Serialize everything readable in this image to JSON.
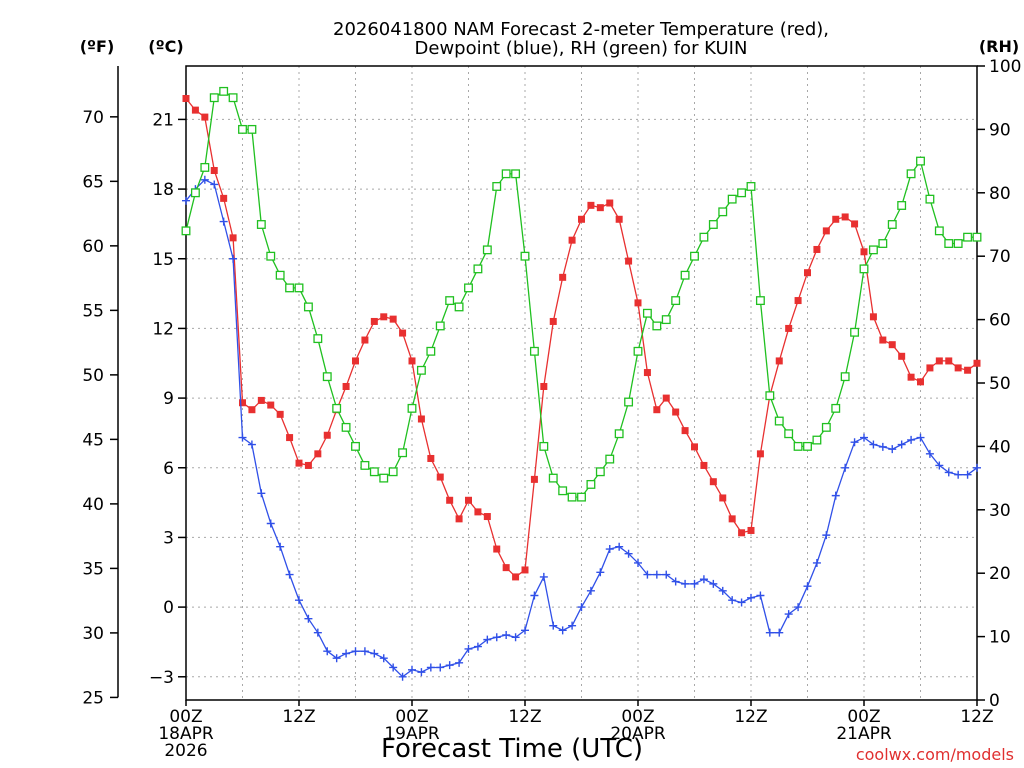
{
  "chart_data": {
    "type": "line",
    "title": [
      "2026041800 NAM Forecast 2-meter Temperature (red),",
      "Dewpoint (blue), RH (green) for KUIN"
    ],
    "xlabel": "Forecast Time (UTC)",
    "credit": "coolwx.com/models",
    "units": {
      "fahrenheit": "(ºF)",
      "celsius": "(ºC)",
      "rh": "(RH)"
    },
    "x_range_hours": [
      0,
      84
    ],
    "x_ticks": [
      {
        "hour": 0,
        "lines": [
          "00Z",
          "18APR",
          "2026"
        ]
      },
      {
        "hour": 12,
        "lines": [
          "12Z"
        ]
      },
      {
        "hour": 24,
        "lines": [
          "00Z",
          "19APR"
        ]
      },
      {
        "hour": 36,
        "lines": [
          "12Z"
        ]
      },
      {
        "hour": 48,
        "lines": [
          "00Z",
          "20APR"
        ]
      },
      {
        "hour": 60,
        "lines": [
          "12Z"
        ]
      },
      {
        "hour": 72,
        "lines": [
          "00Z",
          "21APR"
        ]
      },
      {
        "hour": 84,
        "lines": [
          "12Z"
        ]
      }
    ],
    "y_celsius": {
      "range": [
        -4,
        23.3
      ],
      "ticks": [
        -3,
        0,
        3,
        6,
        9,
        12,
        15,
        18,
        21
      ]
    },
    "y_fahrenheit": {
      "ticks": [
        25,
        30,
        35,
        40,
        45,
        50,
        55,
        60,
        65,
        70
      ]
    },
    "y_rh": {
      "range": [
        0,
        100
      ],
      "ticks": [
        0,
        10,
        20,
        30,
        40,
        50,
        60,
        70,
        80,
        90,
        100
      ]
    },
    "grid": true,
    "series": [
      {
        "name": "Temperature",
        "color": "#e83030",
        "unit": "C",
        "marker": "filled-square",
        "values": [
          21.9,
          21.4,
          21.1,
          18.8,
          17.6,
          15.9,
          8.8,
          8.5,
          8.9,
          8.7,
          8.3,
          7.3,
          6.2,
          6.1,
          6.6,
          7.4,
          8.5,
          9.5,
          10.6,
          11.5,
          12.3,
          12.5,
          12.4,
          11.8,
          10.6,
          8.1,
          6.4,
          5.6,
          4.6,
          3.8,
          4.6,
          4.1,
          3.9,
          2.5,
          1.7,
          1.3,
          1.6,
          5.5,
          9.5,
          12.3,
          14.2,
          15.8,
          16.7,
          17.3,
          17.2,
          17.4,
          16.7,
          14.9,
          13.1,
          10.1,
          8.5,
          9.0,
          8.4,
          7.6,
          6.9,
          6.1,
          5.4,
          4.7,
          3.8,
          3.2,
          3.3,
          6.6,
          9.1,
          10.6,
          12.0,
          13.2,
          14.4,
          15.4,
          16.2,
          16.7,
          16.8,
          16.5,
          15.3,
          12.5,
          11.5,
          11.3,
          10.8,
          9.9,
          9.7,
          10.3,
          10.6,
          10.6,
          10.3,
          10.2,
          10.5
        ]
      },
      {
        "name": "Dewpoint",
        "color": "#3050e8",
        "unit": "C",
        "marker": "plus",
        "values": [
          17.5,
          18.0,
          18.4,
          18.2,
          16.6,
          15.0,
          7.3,
          7.0,
          4.9,
          3.6,
          2.6,
          1.4,
          0.3,
          -0.5,
          -1.1,
          -1.9,
          -2.2,
          -2.0,
          -1.9,
          -1.9,
          -2.0,
          -2.2,
          -2.6,
          -3.0,
          -2.7,
          -2.8,
          -2.6,
          -2.6,
          -2.5,
          -2.4,
          -1.8,
          -1.7,
          -1.4,
          -1.3,
          -1.2,
          -1.3,
          -1.0,
          0.5,
          1.3,
          -0.8,
          -1.0,
          -0.8,
          0.0,
          0.7,
          1.5,
          2.5,
          2.6,
          2.3,
          1.9,
          1.4,
          1.4,
          1.4,
          1.1,
          1.0,
          1.0,
          1.2,
          1.0,
          0.7,
          0.3,
          0.2,
          0.4,
          0.5,
          -1.1,
          -1.1,
          -0.3,
          0.0,
          0.9,
          1.9,
          3.1,
          4.8,
          6.0,
          7.1,
          7.3,
          7.0,
          6.9,
          6.8,
          7.0,
          7.2,
          7.3,
          6.6,
          6.1,
          5.8,
          5.7,
          5.7,
          6.0
        ]
      },
      {
        "name": "RH",
        "color": "#20c020",
        "unit": "%",
        "marker": "open-square",
        "values": [
          74,
          80,
          84,
          95,
          96,
          95,
          90,
          90,
          75,
          70,
          67,
          65,
          65,
          62,
          57,
          51,
          46,
          43,
          40,
          37,
          36,
          35,
          36,
          39,
          46,
          52,
          55,
          59,
          63,
          62,
          65,
          68,
          71,
          81,
          83,
          83,
          70,
          55,
          40,
          35,
          33,
          32,
          32,
          34,
          36,
          38,
          42,
          47,
          55,
          61,
          59,
          60,
          63,
          67,
          70,
          73,
          75,
          77,
          79,
          80,
          81,
          63,
          48,
          44,
          42,
          40,
          40,
          41,
          43,
          46,
          51,
          58,
          68,
          71,
          72,
          75,
          78,
          83,
          85,
          79,
          74,
          72,
          72,
          73,
          73
        ]
      }
    ]
  }
}
